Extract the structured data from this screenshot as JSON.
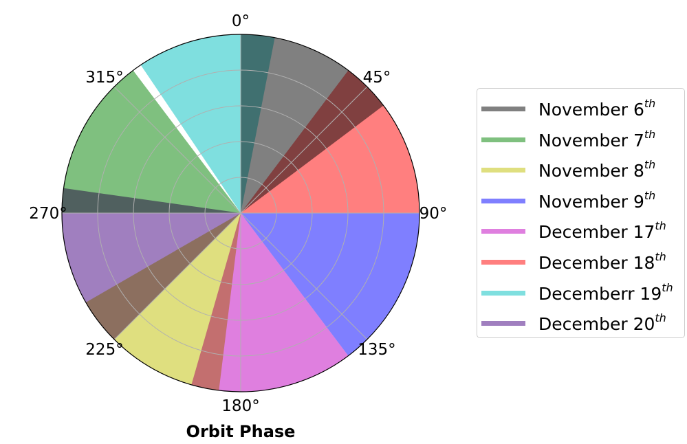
{
  "chart_data": {
    "type": "polar-bar",
    "xlabel": "Orbit Phase",
    "theta_ticks": [
      "0°",
      "45°",
      "90°",
      "135°",
      "180°",
      "225°",
      "270°",
      "315°"
    ],
    "theta_tick_values": [
      0,
      45,
      90,
      135,
      180,
      225,
      270,
      315
    ],
    "theta_direction": "clockwise",
    "theta_zero": "top",
    "radial_grid_levels": 5,
    "radius_max": 1,
    "grid": true,
    "legend_position": "right",
    "series": [
      {
        "name": "November 6",
        "suffix": "th",
        "color": "#808080",
        "theta_start": 0,
        "theta_end": 53,
        "radius": 1
      },
      {
        "name": "November 7",
        "suffix": "th",
        "color": "#7fc07f",
        "theta_start": 270,
        "theta_end": 323,
        "radius": 1
      },
      {
        "name": "November 8",
        "suffix": "th",
        "color": "#dfdf7f",
        "theta_start": 187,
        "theta_end": 240,
        "radius": 1
      },
      {
        "name": "November 9",
        "suffix": "th",
        "color": "#7f7fff",
        "theta_start": 90,
        "theta_end": 143,
        "radius": 1
      },
      {
        "name": "December 17",
        "suffix": "th",
        "color": "#df7fdf",
        "theta_start": 143,
        "theta_end": 196,
        "radius": 1
      },
      {
        "name": "December 18",
        "suffix": "th",
        "color": "#ff7f7f",
        "theta_start": 37,
        "theta_end": 90,
        "radius": 1
      },
      {
        "name": "Decemberr 19",
        "suffix": "th",
        "color": "#7fdfdf",
        "theta_start": 326,
        "theta_end": 11,
        "radius": 1
      },
      {
        "name": "December 20",
        "suffix": "th",
        "color": "#a07fbf",
        "theta_start": 225,
        "theta_end": 278,
        "radius": 1
      }
    ]
  }
}
